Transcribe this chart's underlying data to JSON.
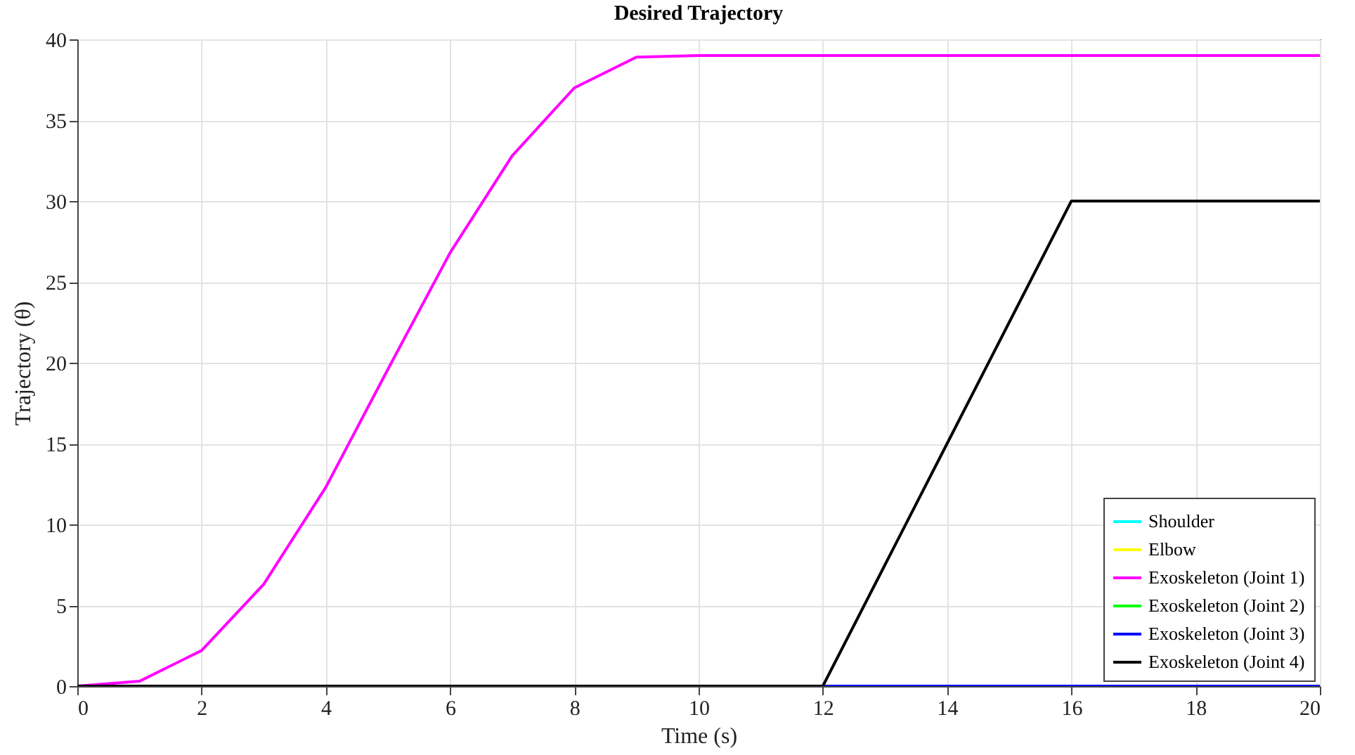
{
  "chart_data": {
    "type": "line",
    "title": "Desired Trajectory",
    "xlabel": "Time (s)",
    "ylabel": "Trajectory (θ)",
    "x": [
      0,
      1,
      2,
      3,
      4,
      5,
      6,
      7,
      8,
      9,
      10,
      11,
      12,
      13,
      14,
      15,
      16,
      17,
      18,
      19,
      20
    ],
    "series": [
      {
        "name": "Shoulder",
        "color": "#00ffff",
        "values": [
          null,
          null,
          null,
          null,
          null,
          null,
          null,
          null,
          null,
          null,
          null,
          null,
          null,
          null,
          null,
          null,
          null,
          null,
          null,
          null,
          null
        ]
      },
      {
        "name": "Elbow",
        "color": "#ffff00",
        "values": [
          null,
          null,
          null,
          null,
          null,
          null,
          null,
          null,
          null,
          null,
          null,
          null,
          null,
          null,
          null,
          null,
          null,
          null,
          null,
          null,
          null
        ]
      },
      {
        "name": "Exoskeleton (Joint 1)",
        "color": "#ff00ff",
        "values": [
          0,
          0.3,
          2.2,
          6.3,
          12.3,
          19.6,
          26.8,
          32.8,
          37,
          38.9,
          39,
          39,
          39,
          39,
          39,
          39,
          39,
          39,
          39,
          39,
          39
        ]
      },
      {
        "name": "Exoskeleton (Joint 2)",
        "color": "#00ff00",
        "values": [
          null,
          null,
          null,
          null,
          null,
          null,
          null,
          null,
          null,
          null,
          null,
          null,
          null,
          null,
          null,
          null,
          null,
          null,
          null,
          null,
          null
        ]
      },
      {
        "name": "Exoskeleton (Joint 3)",
        "color": "#0000ff",
        "values": [
          null,
          null,
          null,
          null,
          null,
          null,
          null,
          null,
          null,
          null,
          null,
          null,
          0,
          0,
          0,
          0,
          0,
          0,
          0,
          0,
          0
        ]
      },
      {
        "name": "Exoskeleton (Joint 4)",
        "color": "#000000",
        "values": [
          0,
          0,
          0,
          0,
          0,
          0,
          0,
          0,
          0,
          0,
          0,
          0,
          0,
          7.5,
          15,
          22.5,
          30,
          30,
          30,
          30,
          30
        ]
      }
    ],
    "xlim": [
      0,
      20
    ],
    "xticks": [
      0,
      2,
      4,
      6,
      8,
      10,
      12,
      14,
      16,
      18,
      20
    ],
    "ylim": [
      0,
      40
    ],
    "yticks": [
      0,
      5,
      10,
      15,
      20,
      25,
      30,
      35,
      40
    ],
    "grid": true,
    "legend": "bottom right",
    "line_style": "solid",
    "marker": "none"
  }
}
